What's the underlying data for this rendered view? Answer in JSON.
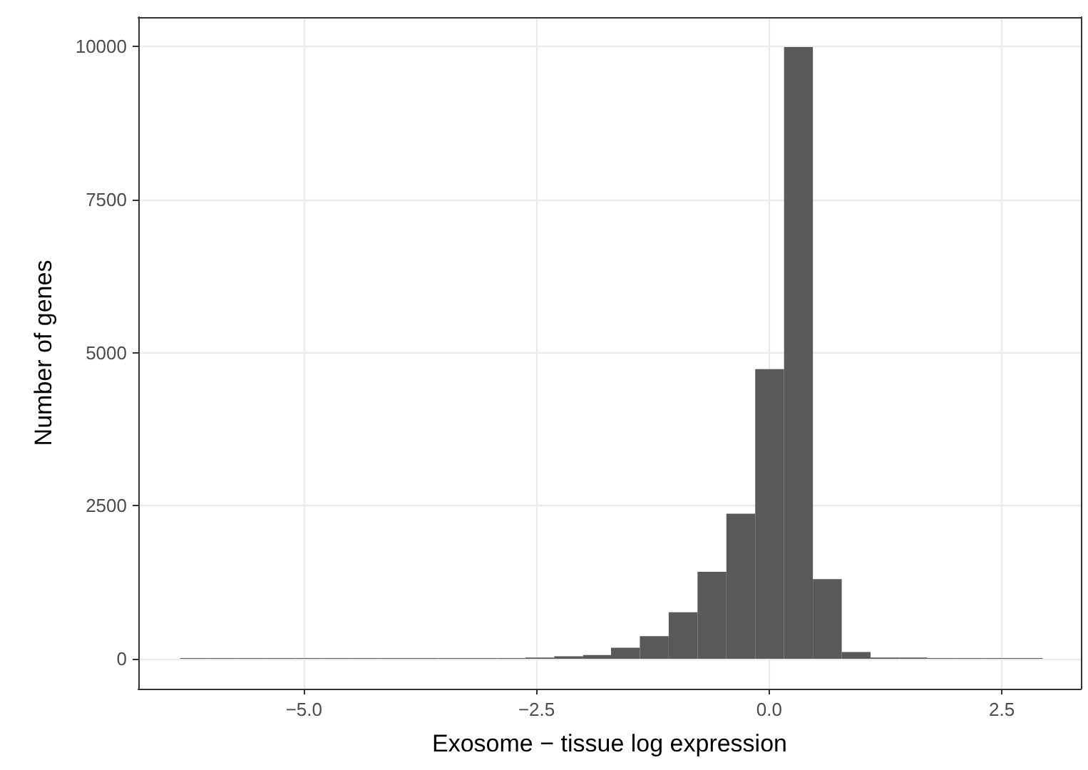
{
  "chart_data": {
    "type": "histogram",
    "xlabel": "Exosome − tissue log expression",
    "ylabel": "Number of genes",
    "bins": [
      -6.33,
      -6.02,
      -5.71,
      -5.4,
      -5.09,
      -4.79,
      -4.48,
      -4.17,
      -3.86,
      -3.55,
      -3.24,
      -2.93,
      -2.62,
      -2.31,
      -2.0,
      -1.7,
      -1.39,
      -1.08,
      -0.77,
      -0.46,
      -0.15,
      0.16,
      0.47,
      0.78,
      1.09,
      1.4,
      1.7,
      2.01,
      2.32,
      2.63,
      2.94
    ],
    "values": [
      10,
      10,
      10,
      10,
      10,
      10,
      10,
      10,
      10,
      10,
      10,
      10,
      20,
      40,
      60,
      180,
      370,
      760,
      1420,
      2370,
      4730,
      9990,
      1300,
      110,
      20,
      20,
      10,
      10,
      10,
      10
    ],
    "color": "#595959",
    "xlim": [
      -6.78,
      3.35
    ],
    "ylim": [
      -490,
      10480
    ],
    "xticks": [
      {
        "value": -5,
        "label": "−5.0"
      },
      {
        "value": -2.5,
        "label": "−2.5"
      },
      {
        "value": 0,
        "label": "0.0"
      },
      {
        "value": 2.5,
        "label": "2.5"
      }
    ],
    "yticks": [
      0,
      2500,
      5000,
      7500,
      10000
    ],
    "grid": true
  }
}
